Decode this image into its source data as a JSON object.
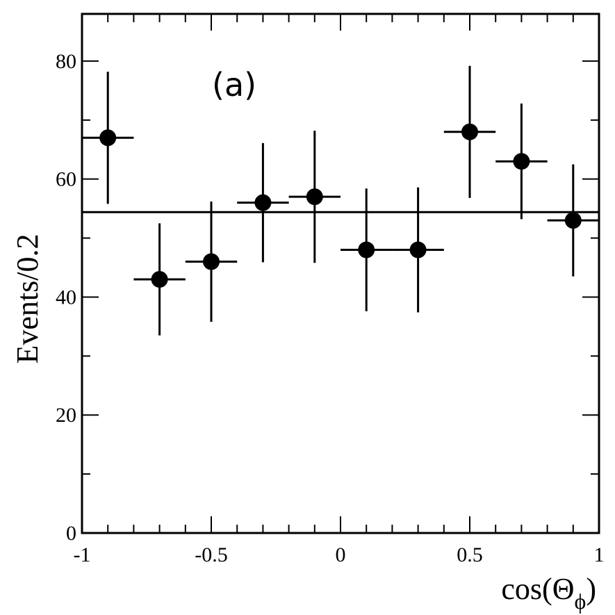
{
  "chart_data": {
    "type": "scatter",
    "panel_label": "(a)",
    "xlabel": "cos(Θ",
    "xlabel_sub": "ϕ",
    "xlabel_close": ")",
    "ylabel": "Events/0.2",
    "xlim": [
      -1,
      1
    ],
    "ylim": [
      0,
      88
    ],
    "x_ticks": [
      -1,
      -0.5,
      0,
      0.5,
      1
    ],
    "x_tick_labels": [
      "-1",
      "-0.5",
      "0",
      "0.5",
      "1"
    ],
    "y_ticks": [
      0,
      20,
      40,
      60,
      80
    ],
    "y_tick_labels": [
      "0",
      "20",
      "40",
      "60",
      "80"
    ],
    "bin_width": 0.2,
    "points": [
      {
        "x": -0.9,
        "y": 67,
        "yerr_low": 11.2,
        "yerr_high": 11.2
      },
      {
        "x": -0.7,
        "y": 43,
        "yerr_low": 9.5,
        "yerr_high": 9.5
      },
      {
        "x": -0.5,
        "y": 46,
        "yerr_low": 10.2,
        "yerr_high": 10.2
      },
      {
        "x": -0.3,
        "y": 56,
        "yerr_low": 10.1,
        "yerr_high": 10.1
      },
      {
        "x": -0.1,
        "y": 57,
        "yerr_low": 11.2,
        "yerr_high": 11.2
      },
      {
        "x": 0.1,
        "y": 48,
        "yerr_low": 10.4,
        "yerr_high": 10.4
      },
      {
        "x": 0.3,
        "y": 48,
        "yerr_low": 10.6,
        "yerr_high": 10.6
      },
      {
        "x": 0.5,
        "y": 68,
        "yerr_low": 11.2,
        "yerr_high": 11.2
      },
      {
        "x": 0.7,
        "y": 63,
        "yerr_low": 9.8,
        "yerr_high": 9.8
      },
      {
        "x": 0.9,
        "y": 53,
        "yerr_low": 9.5,
        "yerr_high": 9.5
      }
    ],
    "fit_line": {
      "y": 54.4
    },
    "grid": false,
    "colors": {
      "markers": "#000000",
      "fit": "#000000",
      "frame": "#000000"
    }
  }
}
